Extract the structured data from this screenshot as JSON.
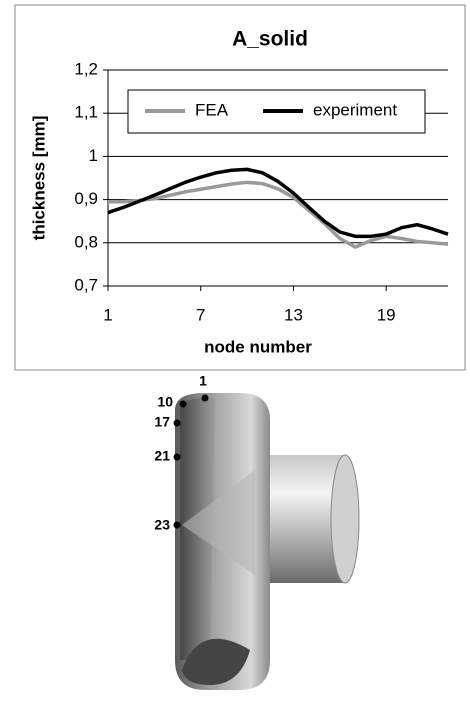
{
  "chart_data": {
    "type": "line",
    "title": "A_solid",
    "x_label": "node number",
    "y_label": "thickness [mm]",
    "x": [
      1,
      2,
      3,
      4,
      5,
      6,
      7,
      8,
      9,
      10,
      11,
      12,
      13,
      14,
      15,
      16,
      17,
      18,
      19,
      20,
      21,
      22,
      23
    ],
    "series": [
      {
        "name": "FEA",
        "color": "#999999",
        "values": [
          0.895,
          0.895,
          0.898,
          0.902,
          0.91,
          0.918,
          0.924,
          0.93,
          0.936,
          0.94,
          0.937,
          0.925,
          0.905,
          0.875,
          0.845,
          0.81,
          0.79,
          0.805,
          0.815,
          0.81,
          0.803,
          0.8,
          0.797
        ]
      },
      {
        "name": "experiment",
        "color": "#000000",
        "values": [
          0.87,
          0.882,
          0.896,
          0.91,
          0.925,
          0.94,
          0.952,
          0.962,
          0.968,
          0.97,
          0.962,
          0.942,
          0.915,
          0.882,
          0.85,
          0.825,
          0.815,
          0.815,
          0.82,
          0.835,
          0.842,
          0.832,
          0.82
        ]
      }
    ],
    "xlim": [
      1,
      23
    ],
    "xticks": [
      1,
      7,
      13,
      19
    ],
    "ylim": [
      0.7,
      1.2
    ],
    "yticks": [
      {
        "value": 0.7,
        "label": "0,7"
      },
      {
        "value": 0.8,
        "label": "0,8"
      },
      {
        "value": 0.9,
        "label": "0,9"
      },
      1,
      {
        "value": 1.1,
        "label": "1,1"
      },
      {
        "value": 1.2,
        "label": "1,2"
      }
    ],
    "grid": true,
    "legend": "top"
  },
  "figure": {
    "node_labels": [
      "1",
      "10",
      "17",
      "21",
      "23"
    ]
  }
}
